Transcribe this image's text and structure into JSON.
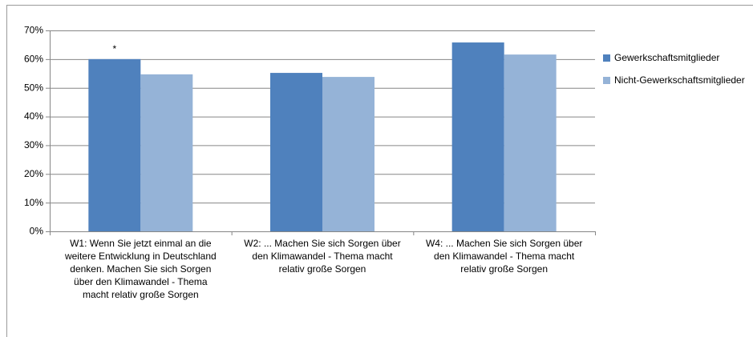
{
  "chart_data": {
    "type": "bar",
    "categories": [
      "W1: Wenn Sie jetzt einmal an die weitere Entwicklung in Deutschland denken. Machen Sie sich Sorgen über den Klimawandel - Thema macht relativ große Sorgen",
      "W2: ... Machen Sie sich Sorgen über den Klimawandel - Thema macht relativ große Sorgen",
      "W4: ... Machen Sie sich Sorgen über den Klimawandel - Thema macht relativ große Sorgen"
    ],
    "series": [
      {
        "name": "Gewerkschaftsmitglieder",
        "color": "#4f81bd",
        "values": [
          60,
          55.2,
          65.8
        ]
      },
      {
        "name": "Nicht-Gewerkschaftsmitglieder",
        "color": "#95b3d7",
        "values": [
          54.7,
          53.8,
          61.6
        ]
      }
    ],
    "annotations": [
      {
        "text": "*",
        "series": 0,
        "category": 0
      }
    ],
    "ylim": [
      0,
      70
    ],
    "yticks": [
      {
        "value": 0,
        "label": "0%"
      },
      {
        "value": 10,
        "label": "10%"
      },
      {
        "value": 20,
        "label": "20%"
      },
      {
        "value": 30,
        "label": "30%"
      },
      {
        "value": 40,
        "label": "40%"
      },
      {
        "value": 50,
        "label": "50%"
      },
      {
        "value": 60,
        "label": "60%"
      },
      {
        "value": 70,
        "label": "70%"
      }
    ],
    "grid": true,
    "legend": "right"
  }
}
